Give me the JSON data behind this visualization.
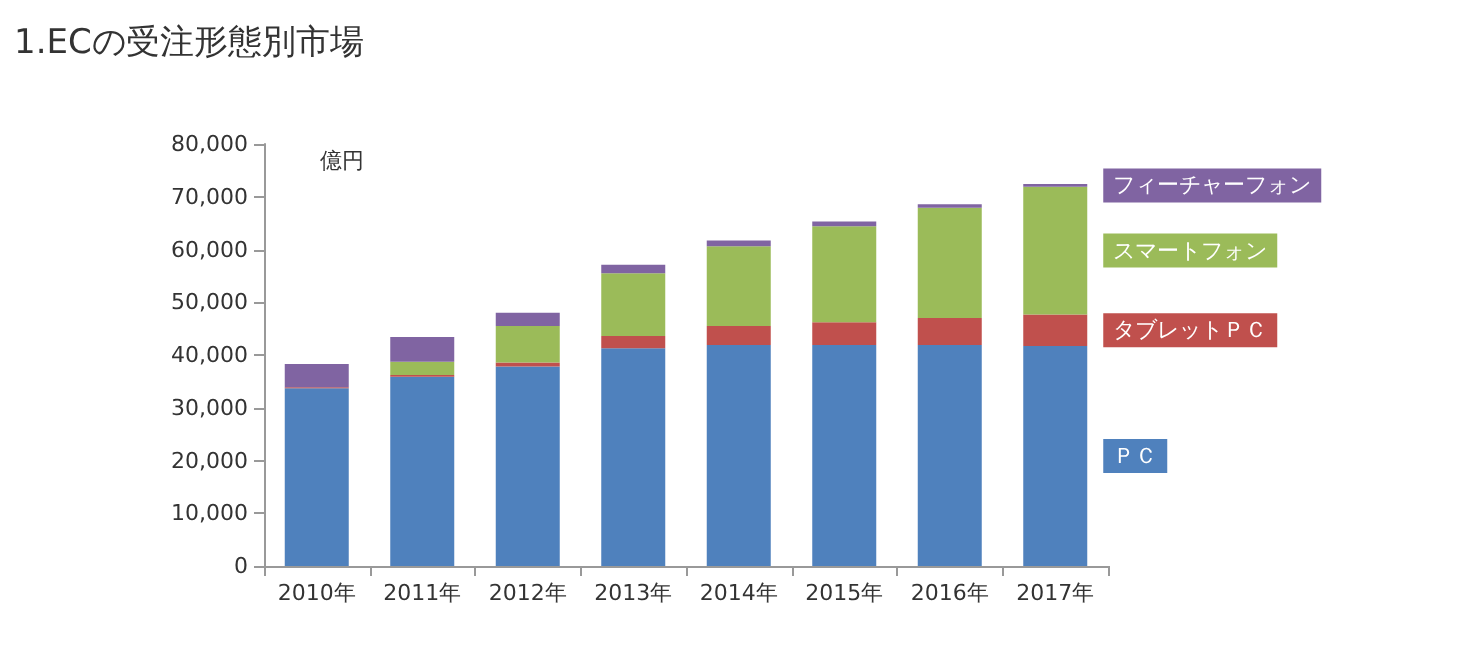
{
  "chart_data": {
    "type": "bar",
    "title": "1.ECの受注形態別市場",
    "ylabel": "億円",
    "stacked": true,
    "grid": false,
    "categories": [
      "2010年",
      "2011年",
      "2012年",
      "2013年",
      "2014年",
      "2015年",
      "2016年",
      "2017年"
    ],
    "series": [
      {
        "name": "ＰＣ",
        "color": "#4f81bd",
        "values": [
          33700,
          35900,
          37800,
          41300,
          41900,
          41900,
          41900,
          41700
        ]
      },
      {
        "name": "タブレットＰＣ",
        "color": "#c0504d",
        "values": [
          200,
          300,
          800,
          2300,
          3600,
          4300,
          5100,
          6000
        ]
      },
      {
        "name": "スマートフォン",
        "color": "#9bbb59",
        "values": [
          0,
          2500,
          6900,
          11900,
          15100,
          18200,
          20900,
          24200
        ]
      },
      {
        "name": "フィーチャーフォン",
        "color": "#8064a2",
        "values": [
          4400,
          4700,
          2500,
          1600,
          1100,
          900,
          700,
          500
        ]
      }
    ],
    "ylim": [
      0,
      80000
    ],
    "yticks": [
      0,
      {
        "value": 10000,
        "label": "10,000"
      },
      {
        "value": 20000,
        "label": "20,000"
      },
      {
        "value": 30000,
        "label": "30,000"
      },
      {
        "value": 40000,
        "label": "40,000"
      },
      {
        "value": 50000,
        "label": "50,000"
      },
      {
        "value": 60000,
        "label": "60,000"
      },
      {
        "value": 70000,
        "label": "70,000"
      },
      {
        "value": 80000,
        "label": "80,000"
      }
    ]
  }
}
